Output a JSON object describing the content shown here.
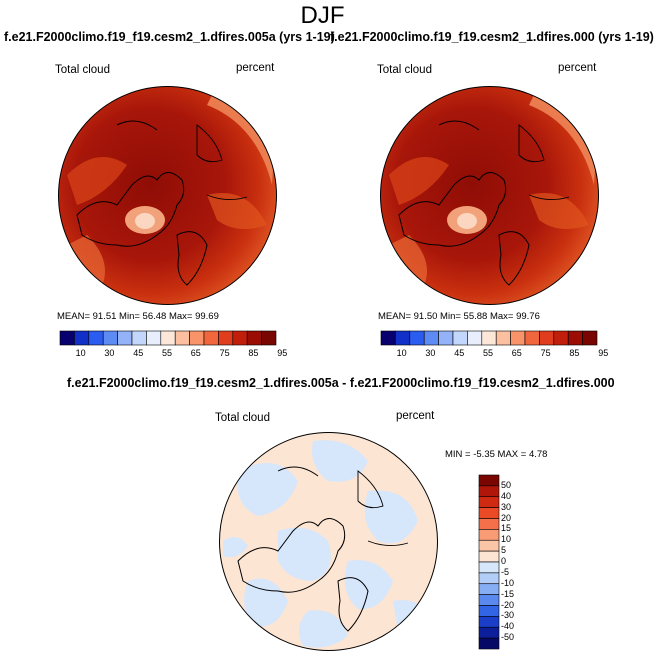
{
  "page": {
    "title": "DJF"
  },
  "panels": [
    {
      "case_title": "f.e21.F2000climo.f19_f19.cesm2_1.dfires.005a (yrs 1-19)",
      "variable": "Total cloud",
      "units": "percent",
      "stats": {
        "mean": "91.51",
        "min": "56.48",
        "max": "99.69"
      },
      "stats_text": "MEAN=  91.51  Min=  56.48  Max=  99.69"
    },
    {
      "case_title": "f.e21.F2000climo.f19_f19.cesm2_1.dfires.000 (yrs 1-19)",
      "variable": "Total cloud",
      "units": "percent",
      "stats": {
        "mean": "91.50",
        "min": "55.88",
        "max": "99.76"
      },
      "stats_text": "MEAN=  91.50  Min=  55.88  Max=  99.76"
    }
  ],
  "diff_panel": {
    "title": "f.e21.F2000climo.f19_f19.cesm2_1.dfires.005a - f.e21.F2000climo.f19_f19.cesm2_1.dfires.000",
    "variable": "Total cloud",
    "units": "percent",
    "stats": {
      "min": "-5.35",
      "max": "4.78"
    },
    "stats_text": "MIN =  -5.35 MAX =   4.78"
  },
  "colorbar_abs": {
    "labels": [
      "10",
      "30",
      "45",
      "55",
      "65",
      "75",
      "85",
      "95"
    ],
    "colors": [
      "#08006e",
      "#1030c8",
      "#2a5cf0",
      "#5e8af4",
      "#93b2f8",
      "#c3d6fb",
      "#e8eefc",
      "#fde7d8",
      "#fcbfa0",
      "#f9936a",
      "#f2663e",
      "#e03c1e",
      "#c21e0c",
      "#9a0c04",
      "#7a0602"
    ]
  },
  "colorbar_diff": {
    "labels": [
      "50",
      "40",
      "30",
      "20",
      "15",
      "10",
      "5",
      "0",
      "-5",
      "-10",
      "-15",
      "-20",
      "-30",
      "-40",
      "-50"
    ],
    "colors": [
      "#7a0602",
      "#b0170a",
      "#d02a12",
      "#ea4a26",
      "#f4704a",
      "#f99c76",
      "#fbc6a8",
      "#fde5d4",
      "#d6e6fb",
      "#b2cdf8",
      "#86aef4",
      "#5a8af0",
      "#3264e6",
      "#1a3ec8",
      "#0c1e9a",
      "#060a66"
    ]
  },
  "chart_data": [
    {
      "type": "heatmap",
      "title": "f.e21.F2000climo.f19_f19.cesm2_1.dfires.005a (yrs 1-19)",
      "variable": "Total cloud",
      "units": "percent",
      "projection": "polar stereographic (north)",
      "mean": 91.51,
      "min": 56.48,
      "max": 99.69,
      "colorbar_levels": [
        10,
        30,
        45,
        55,
        65,
        75,
        85,
        95
      ]
    },
    {
      "type": "heatmap",
      "title": "f.e21.F2000climo.f19_f19.cesm2_1.dfires.000 (yrs 1-19)",
      "variable": "Total cloud",
      "units": "percent",
      "projection": "polar stereographic (north)",
      "mean": 91.5,
      "min": 55.88,
      "max": 99.76,
      "colorbar_levels": [
        10,
        30,
        45,
        55,
        65,
        75,
        85,
        95
      ]
    },
    {
      "type": "heatmap",
      "title": "f.e21.F2000climo.f19_f19.cesm2_1.dfires.005a - f.e21.F2000climo.f19_f19.cesm2_1.dfires.000",
      "variable": "Total cloud",
      "units": "percent",
      "projection": "polar stereographic (north)",
      "min": -5.35,
      "max": 4.78,
      "colorbar_levels": [
        -50,
        -40,
        -30,
        -20,
        -15,
        -10,
        -5,
        0,
        5,
        10,
        15,
        20,
        30,
        40,
        50
      ]
    }
  ]
}
